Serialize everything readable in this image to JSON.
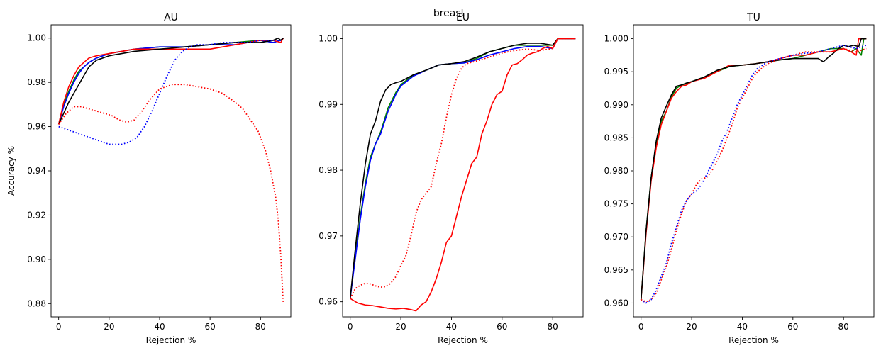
{
  "figure": {
    "suptitle": "breast"
  },
  "chart_data": [
    {
      "type": "line",
      "title": "AU",
      "xlabel": "Rejection %",
      "ylabel": "Accuracy %",
      "xlim": [
        -3,
        92
      ],
      "ylim": [
        0.874,
        1.006
      ],
      "xticks": [
        0,
        20,
        40,
        60,
        80
      ],
      "yticks": [
        0.88,
        0.9,
        0.92,
        0.94,
        0.96,
        0.98,
        1.0
      ],
      "ytick_labels": [
        "0.88",
        "0.90",
        "0.92",
        "0.94",
        "0.96",
        "0.98",
        "1.00"
      ],
      "grid": false,
      "series": [
        {
          "color": "#008000",
          "style": "solid",
          "x": [
            0,
            2,
            4,
            6,
            8,
            10,
            12,
            15,
            20,
            25,
            30,
            40,
            50,
            60,
            70,
            80,
            85,
            88,
            89
          ],
          "y": [
            0.961,
            0.97,
            0.976,
            0.981,
            0.985,
            0.987,
            0.989,
            0.991,
            0.993,
            0.994,
            0.995,
            0.996,
            0.996,
            0.997,
            0.998,
            0.999,
            0.998,
            0.999,
            1.0
          ]
        },
        {
          "color": "#0000ff",
          "style": "solid",
          "x": [
            0,
            2,
            4,
            6,
            8,
            10,
            12,
            15,
            20,
            25,
            30,
            40,
            50,
            60,
            70,
            80,
            85,
            88,
            89
          ],
          "y": [
            0.961,
            0.969,
            0.975,
            0.98,
            0.984,
            0.987,
            0.989,
            0.991,
            0.993,
            0.994,
            0.995,
            0.996,
            0.996,
            0.997,
            0.997,
            0.999,
            0.998,
            0.999,
            1.0
          ]
        },
        {
          "color": "#ff0000",
          "style": "solid",
          "x": [
            0,
            2,
            4,
            6,
            8,
            10,
            12,
            15,
            20,
            25,
            30,
            40,
            50,
            60,
            70,
            80,
            85,
            88,
            89
          ],
          "y": [
            0.961,
            0.971,
            0.978,
            0.983,
            0.987,
            0.989,
            0.991,
            0.992,
            0.993,
            0.994,
            0.995,
            0.995,
            0.995,
            0.995,
            0.997,
            0.999,
            0.999,
            0.998,
            1.0
          ]
        },
        {
          "color": "#000000",
          "style": "solid",
          "x": [
            0,
            2,
            4,
            6,
            8,
            10,
            12,
            15,
            20,
            25,
            30,
            40,
            50,
            60,
            70,
            80,
            85,
            87,
            88,
            89
          ],
          "y": [
            0.961,
            0.966,
            0.971,
            0.975,
            0.979,
            0.983,
            0.987,
            0.99,
            0.992,
            0.993,
            0.994,
            0.995,
            0.996,
            0.997,
            0.998,
            0.998,
            0.999,
            1.0,
            0.999,
            1.0
          ]
        },
        {
          "color": "#0000ff",
          "style": "dotted",
          "x": [
            0,
            5,
            10,
            15,
            20,
            25,
            28,
            31,
            34,
            37,
            40,
            43,
            46,
            49,
            52,
            55,
            60,
            65,
            70,
            75,
            80,
            85,
            88
          ],
          "y": [
            0.96,
            0.958,
            0.956,
            0.954,
            0.952,
            0.952,
            0.953,
            0.955,
            0.96,
            0.967,
            0.975,
            0.983,
            0.99,
            0.994,
            0.996,
            0.997,
            0.997,
            0.998,
            0.998,
            0.998,
            0.999,
            0.999,
            0.999
          ]
        },
        {
          "color": "#ff0000",
          "style": "dotted",
          "x": [
            0,
            3,
            6,
            9,
            12,
            15,
            18,
            21,
            24,
            27,
            30,
            33,
            36,
            40,
            45,
            50,
            55,
            60,
            65,
            70,
            73,
            76,
            79,
            82,
            84,
            86,
            87,
            88,
            89
          ],
          "y": [
            0.961,
            0.966,
            0.969,
            0.969,
            0.968,
            0.967,
            0.966,
            0.965,
            0.963,
            0.962,
            0.963,
            0.967,
            0.972,
            0.977,
            0.979,
            0.979,
            0.978,
            0.977,
            0.975,
            0.971,
            0.968,
            0.963,
            0.958,
            0.949,
            0.94,
            0.928,
            0.918,
            0.902,
            0.88
          ]
        }
      ]
    },
    {
      "type": "line",
      "title": "EU",
      "xlabel": "Rejection %",
      "xlim": [
        -3,
        92
      ],
      "ylim": [
        0.9577,
        1.0021
      ],
      "xticks": [
        0,
        20,
        40,
        60,
        80
      ],
      "yticks": [
        0.96,
        0.97,
        0.98,
        0.99,
        1.0
      ],
      "ytick_labels": [
        "0.96",
        "0.97",
        "0.98",
        "0.99",
        "1.00"
      ],
      "grid": false,
      "series": [
        {
          "color": "#008000",
          "style": "solid",
          "x": [
            0,
            2,
            4,
            6,
            8,
            10,
            12,
            15,
            18,
            20,
            25,
            30,
            35,
            40,
            45,
            50,
            55,
            60,
            65,
            70,
            75,
            80,
            82,
            85,
            89
          ],
          "y": [
            0.9605,
            0.967,
            0.973,
            0.978,
            0.982,
            0.984,
            0.9858,
            0.9895,
            0.9918,
            0.993,
            0.9945,
            0.9952,
            0.996,
            0.9962,
            0.9963,
            0.997,
            0.998,
            0.9985,
            0.999,
            0.999,
            0.999,
            0.999,
            1.0,
            1.0,
            1.0
          ]
        },
        {
          "color": "#0000ff",
          "style": "solid",
          "x": [
            0,
            2,
            4,
            6,
            8,
            10,
            12,
            15,
            18,
            20,
            25,
            30,
            35,
            40,
            45,
            50,
            55,
            60,
            65,
            70,
            75,
            80,
            82,
            85,
            89
          ],
          "y": [
            0.9605,
            0.9665,
            0.9725,
            0.9775,
            0.9815,
            0.984,
            0.9855,
            0.989,
            0.9915,
            0.9928,
            0.9943,
            0.9952,
            0.996,
            0.9962,
            0.9963,
            0.9968,
            0.9975,
            0.998,
            0.9985,
            0.9988,
            0.9988,
            0.9985,
            1.0,
            1.0,
            1.0
          ]
        },
        {
          "color": "#000000",
          "style": "solid",
          "x": [
            0,
            2,
            4,
            6,
            8,
            10,
            12,
            14,
            16,
            18,
            20,
            25,
            30,
            35,
            40,
            45,
            50,
            55,
            60,
            65,
            70,
            75,
            80,
            82,
            85,
            89
          ],
          "y": [
            0.9605,
            0.968,
            0.975,
            0.981,
            0.9855,
            0.9875,
            0.9905,
            0.9922,
            0.993,
            0.9933,
            0.9935,
            0.9945,
            0.9952,
            0.996,
            0.9962,
            0.9965,
            0.9972,
            0.998,
            0.9985,
            0.999,
            0.9993,
            0.9993,
            0.999,
            1.0,
            1.0,
            1.0
          ]
        },
        {
          "color": "#ff0000",
          "style": "dotted",
          "x": [
            0,
            2,
            4,
            6,
            8,
            10,
            12,
            14,
            16,
            18,
            20,
            22,
            24,
            26,
            28,
            30,
            32,
            34,
            36,
            38,
            40,
            42,
            44,
            46,
            50,
            55,
            60,
            65,
            70,
            75,
            80,
            82,
            85,
            89
          ],
          "y": [
            0.9605,
            0.962,
            0.9625,
            0.9628,
            0.9627,
            0.9624,
            0.9622,
            0.9623,
            0.9628,
            0.9638,
            0.9655,
            0.967,
            0.97,
            0.9735,
            0.9755,
            0.9765,
            0.9775,
            0.981,
            0.984,
            0.988,
            0.9915,
            0.994,
            0.9955,
            0.9962,
            0.9966,
            0.9972,
            0.9978,
            0.9982,
            0.9984,
            0.9982,
            0.9985,
            1.0,
            1.0,
            1.0
          ]
        },
        {
          "color": "#ff0000",
          "style": "solid",
          "x": [
            0,
            3,
            6,
            9,
            12,
            15,
            18,
            21,
            24,
            26,
            28,
            30,
            32,
            34,
            36,
            38,
            40,
            42,
            44,
            46,
            48,
            50,
            52,
            54,
            56,
            58,
            60,
            62,
            64,
            66,
            68,
            70,
            72,
            74,
            76,
            78,
            80,
            82,
            85,
            89
          ],
          "y": [
            0.9605,
            0.9598,
            0.9595,
            0.9594,
            0.9592,
            0.959,
            0.9589,
            0.959,
            0.9588,
            0.9586,
            0.9595,
            0.96,
            0.9615,
            0.9635,
            0.966,
            0.969,
            0.97,
            0.973,
            0.976,
            0.9785,
            0.981,
            0.982,
            0.9855,
            0.9875,
            0.99,
            0.9915,
            0.992,
            0.9945,
            0.996,
            0.9962,
            0.9968,
            0.9975,
            0.9978,
            0.998,
            0.9985,
            0.9988,
            0.9985,
            1.0,
            1.0,
            1.0
          ]
        }
      ]
    },
    {
      "type": "line",
      "title": "TU",
      "xlabel": "Rejection %",
      "xlim": [
        -3,
        92
      ],
      "ylim": [
        0.9579,
        1.0021
      ],
      "xticks": [
        0,
        20,
        40,
        60,
        80
      ],
      "yticks": [
        0.96,
        0.965,
        0.97,
        0.975,
        0.98,
        0.985,
        0.99,
        0.995,
        1.0
      ],
      "ytick_labels": [
        "0.960",
        "0.965",
        "0.970",
        "0.975",
        "0.980",
        "0.985",
        "0.990",
        "0.995",
        "1.000"
      ],
      "grid": false,
      "series": [
        {
          "color": "#008000",
          "style": "solid",
          "x": [
            0,
            2,
            4,
            6,
            8,
            10,
            12,
            14,
            16,
            18,
            20,
            25,
            30,
            35,
            40,
            45,
            50,
            55,
            60,
            65,
            70,
            75,
            80,
            83,
            85,
            87,
            88,
            89
          ],
          "y": [
            0.9605,
            0.971,
            0.979,
            0.984,
            0.9875,
            0.989,
            0.9912,
            0.9925,
            0.993,
            0.9932,
            0.9935,
            0.9942,
            0.995,
            0.9958,
            0.996,
            0.9962,
            0.9965,
            0.9968,
            0.997,
            0.9975,
            0.998,
            0.9985,
            0.9985,
            0.998,
            0.9985,
            0.9975,
            1.0,
            1.0
          ]
        },
        {
          "color": "#ff0000",
          "style": "solid",
          "x": [
            0,
            2,
            4,
            6,
            8,
            10,
            12,
            14,
            16,
            18,
            20,
            25,
            30,
            35,
            40,
            45,
            50,
            55,
            60,
            65,
            70,
            75,
            80,
            83,
            85,
            86,
            87,
            89
          ],
          "y": [
            0.9605,
            0.9705,
            0.9785,
            0.9835,
            0.987,
            0.989,
            0.991,
            0.992,
            0.9928,
            0.993,
            0.9935,
            0.994,
            0.995,
            0.996,
            0.996,
            0.9962,
            0.9965,
            0.997,
            0.9975,
            0.9975,
            0.998,
            0.998,
            0.9985,
            0.998,
            0.9975,
            1.0,
            1.0,
            1.0
          ]
        },
        {
          "color": "#000000",
          "style": "solid",
          "x": [
            0,
            2,
            4,
            6,
            8,
            10,
            12,
            14,
            16,
            18,
            20,
            25,
            30,
            35,
            40,
            45,
            50,
            55,
            60,
            65,
            70,
            72,
            74,
            76,
            78,
            80,
            82,
            84,
            86,
            87,
            88,
            89
          ],
          "y": [
            0.9605,
            0.971,
            0.979,
            0.9845,
            0.988,
            0.9898,
            0.9915,
            0.9928,
            0.993,
            0.9933,
            0.9935,
            0.9942,
            0.9952,
            0.9958,
            0.996,
            0.9962,
            0.9965,
            0.9968,
            0.997,
            0.997,
            0.997,
            0.9965,
            0.9972,
            0.9978,
            0.9985,
            0.999,
            0.9988,
            0.999,
            0.9988,
            1.0,
            1.0,
            1.0
          ]
        },
        {
          "color": "#0000ff",
          "style": "dotted",
          "x": [
            0,
            2,
            4,
            6,
            8,
            10,
            12,
            14,
            16,
            18,
            20,
            22,
            24,
            26,
            28,
            30,
            32,
            34,
            36,
            38,
            40,
            42,
            44,
            46,
            50,
            55,
            60,
            65,
            70,
            75,
            80,
            85,
            89
          ],
          "y": [
            0.9605,
            0.96,
            0.9605,
            0.962,
            0.964,
            0.966,
            0.969,
            0.9715,
            0.974,
            0.9755,
            0.9765,
            0.977,
            0.978,
            0.9795,
            0.981,
            0.9825,
            0.9845,
            0.986,
            0.988,
            0.99,
            0.9915,
            0.993,
            0.9945,
            0.9955,
            0.9965,
            0.997,
            0.9975,
            0.9978,
            0.998,
            0.9985,
            0.999,
            0.9985,
            0.999
          ]
        },
        {
          "color": "#ff0000",
          "style": "dotted",
          "x": [
            0,
            2,
            4,
            6,
            8,
            10,
            12,
            14,
            16,
            18,
            20,
            22,
            24,
            26,
            28,
            30,
            32,
            34,
            36,
            38,
            40,
            42,
            44,
            46,
            50,
            55,
            60,
            65,
            70,
            75,
            80,
            85,
            89
          ],
          "y": [
            0.9605,
            0.9602,
            0.9605,
            0.9615,
            0.9635,
            0.9655,
            0.968,
            0.971,
            0.9735,
            0.9755,
            0.9765,
            0.978,
            0.9788,
            0.979,
            0.98,
            0.9815,
            0.983,
            0.985,
            0.987,
            0.9895,
            0.991,
            0.9925,
            0.994,
            0.995,
            0.9962,
            0.997,
            0.9975,
            0.998,
            0.998,
            0.998,
            0.9985,
            0.998,
            0.9985
          ]
        }
      ]
    }
  ]
}
